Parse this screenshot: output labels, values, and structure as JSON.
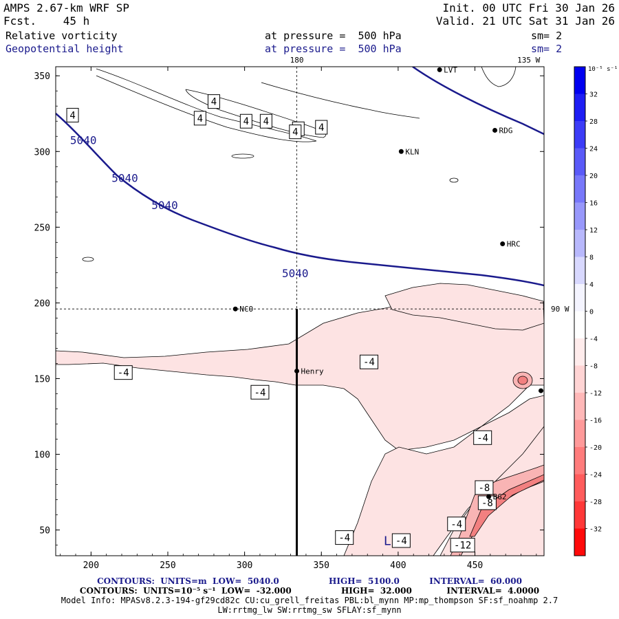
{
  "header": {
    "model": "AMPS 2.67-km WRF SP",
    "fcst_label": "Fcst.",
    "fcst_value": "45 h",
    "init": "Init. 00 UTC Fri 30 Jan 26",
    "valid": "Valid. 21 UTC Sat 31 Jan 26",
    "field1": "Relative vorticity",
    "field2": "Geopotential height",
    "press1": "at pressure =  500 hPa",
    "press2": "at pressure =  500 hPa",
    "sm1": "sm= 2",
    "sm2": "sm= 2"
  },
  "chart_data": {
    "type": "contour-map",
    "title": "Relative vorticity / Geopotential height at 500 hPa",
    "xlim": [
      177,
      495
    ],
    "ylim": [
      33,
      356
    ],
    "x_ticks": [
      200,
      250,
      300,
      350,
      400,
      450
    ],
    "y_ticks": [
      50,
      100,
      150,
      200,
      250,
      300,
      350
    ],
    "meridian_labels": [
      {
        "text": "180",
        "x": 334,
        "y": 356
      },
      {
        "text": "135 W",
        "x": 485,
        "y": 356
      },
      {
        "text": "90 W",
        "x": 495,
        "y": 196
      }
    ],
    "reference_lines": {
      "meridian_x": 334,
      "parallel_y": 196
    },
    "height_contour_labels": [
      {
        "text": "5040",
        "x": 195,
        "y": 305
      },
      {
        "text": "5040",
        "x": 222,
        "y": 280
      },
      {
        "text": "5040",
        "x": 248,
        "y": 262
      },
      {
        "text": "5040",
        "x": 333,
        "y": 217
      }
    ],
    "vorticity_labels": [
      {
        "text": "4",
        "x": 188,
        "y": 324
      },
      {
        "text": "4",
        "x": 280,
        "y": 333
      },
      {
        "text": "4",
        "x": 271,
        "y": 322
      },
      {
        "text": "4",
        "x": 301,
        "y": 320
      },
      {
        "text": "4",
        "x": 314,
        "y": 320
      },
      {
        "text": "4",
        "x": 335,
        "y": 315
      },
      {
        "text": "4",
        "x": 350,
        "y": 316
      },
      {
        "text": "4",
        "x": 333,
        "y": 313
      },
      {
        "text": "-4",
        "x": 221,
        "y": 154
      },
      {
        "text": "-4",
        "x": 310,
        "y": 141
      },
      {
        "text": "-4",
        "x": 381,
        "y": 161
      },
      {
        "text": "-4",
        "x": 455,
        "y": 111
      },
      {
        "text": "-8",
        "x": 456,
        "y": 78
      },
      {
        "text": "-8",
        "x": 458,
        "y": 68
      },
      {
        "text": "-4",
        "x": 438,
        "y": 54
      },
      {
        "text": "-12",
        "x": 442,
        "y": 40
      },
      {
        "text": "-4",
        "x": 365,
        "y": 45
      },
      {
        "text": "-4",
        "x": 402,
        "y": 43
      }
    ],
    "low_marker": {
      "text": "L",
      "x": 393,
      "y": 40
    },
    "stations": [
      {
        "name": "LVT",
        "x": 427,
        "y": 354
      },
      {
        "name": "RDG",
        "x": 463,
        "y": 314
      },
      {
        "name": "KLN",
        "x": 402,
        "y": 300
      },
      {
        "name": "HRC",
        "x": 468,
        "y": 239
      },
      {
        "name": "NCO",
        "x": 294,
        "y": 196
      },
      {
        "name": "Henry",
        "x": 334,
        "y": 155
      },
      {
        "name": "BG2",
        "x": 459,
        "y": 72
      },
      {
        "name": "",
        "x": 493,
        "y": 142
      }
    ],
    "colorbar": {
      "units": "10⁻⁵ s⁻¹",
      "ticks": [
        "32",
        "28",
        "24",
        "20",
        "16",
        "12",
        "8",
        "4",
        "0",
        "-4",
        "-8",
        "-12",
        "-16",
        "-20",
        "-24",
        "-28",
        "-32"
      ],
      "colors": [
        "#0000f0",
        "#1e1ef4",
        "#3c3cf7",
        "#5a5af8",
        "#7878fa",
        "#9898fb",
        "#b8b8fc",
        "#d8d8fe",
        "#f4f4ff",
        "#ffffff",
        "#ffecec",
        "#ffd4d4",
        "#ffb8b8",
        "#ff9a9a",
        "#ff7c7c",
        "#ff5c5c",
        "#ff3838",
        "#ff0a0a"
      ]
    },
    "colors": {
      "height_contour": "#1a1a8c",
      "vorticity_contour": "#000000",
      "neg_fill_light": "#fde0e0",
      "neg_fill_mid": "#f9b4b4",
      "neg_fill_dark": "#f28080"
    }
  },
  "footer": {
    "line1_a": "CONTOURS:  UNITS=m  LOW=  5040.0",
    "line1_b": "HIGH=  5100.0",
    "line1_c": "INTERVAL=  60.000",
    "line2_a": "CONTOURS:  UNITS=10⁻⁵ s⁻¹  LOW=  -32.000",
    "line2_b": "HIGH=  32.000",
    "line2_c": "INTERVAL=  4.0000",
    "line3": "Model Info: MPASv8.2.3-194-gf29cd82c CU:cu_grell_freitas PBL:bl_mynn MP:mp_thompson SF:sf_noahmp 2.7",
    "line4": "LW:rrtmg_lw SW:rrtmg_sw SFLAY:sf_mynn"
  }
}
